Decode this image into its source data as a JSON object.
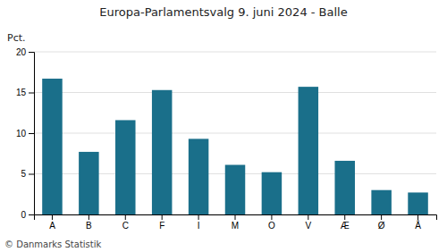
{
  "chart_data": {
    "type": "bar",
    "title": "Europa-Parlamentsvalg 9. juni 2024 - Balle",
    "y_label": "Pct.",
    "annotations": [
      "© Danmarks Statistik"
    ],
    "categories": [
      "A",
      "B",
      "C",
      "F",
      "I",
      "M",
      "O",
      "V",
      "Æ",
      "Ø",
      "Å"
    ],
    "values": [
      16.7,
      7.7,
      11.6,
      15.3,
      9.3,
      6.1,
      5.2,
      15.7,
      6.6,
      3.0,
      2.7
    ],
    "color": "#1a6f8a",
    "ylim": [
      0,
      20
    ],
    "yticks": [
      0,
      5,
      10,
      15,
      20
    ],
    "grid": true
  }
}
